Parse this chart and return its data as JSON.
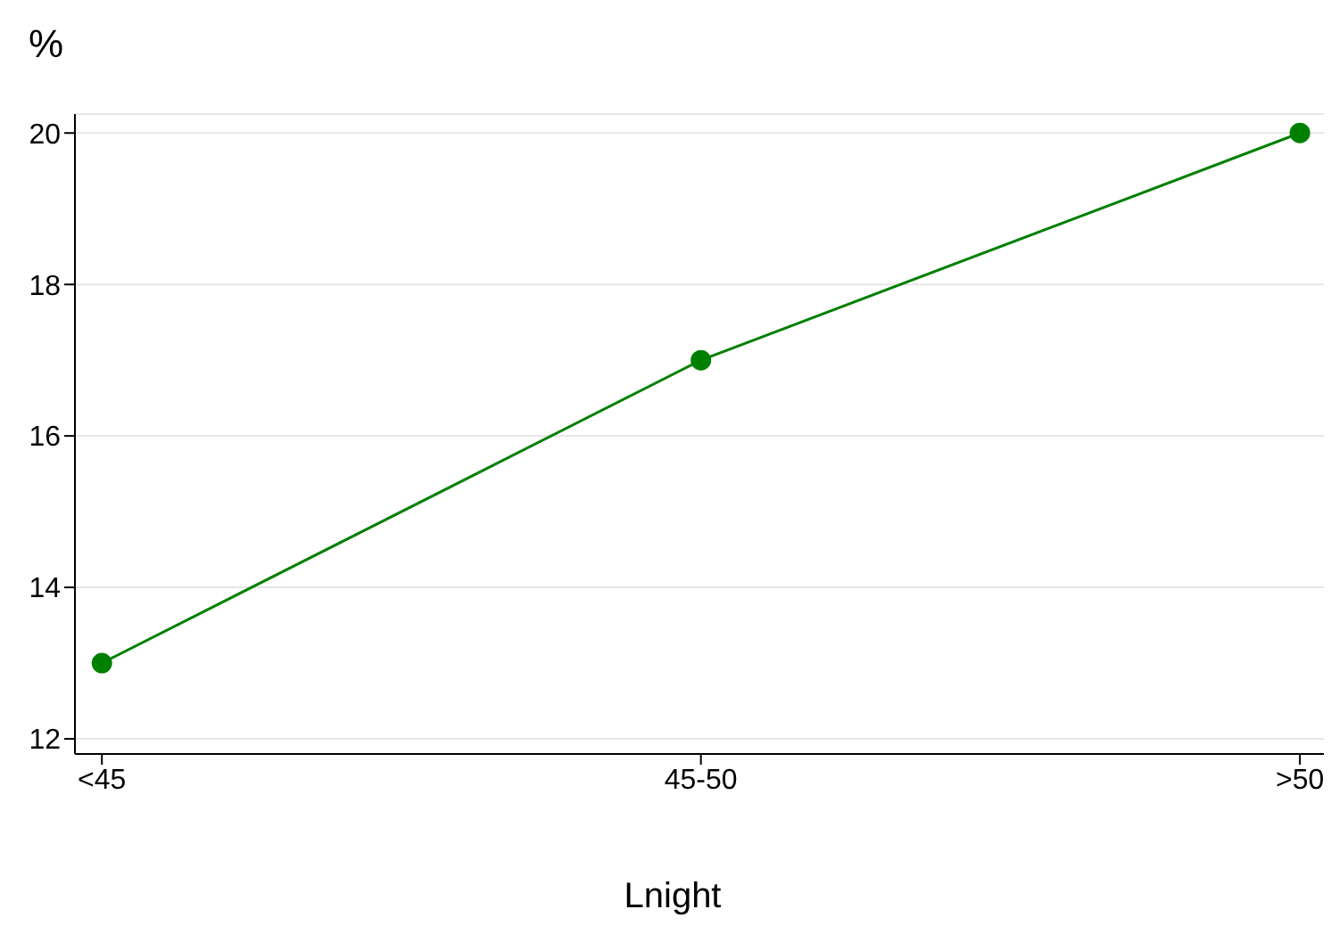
{
  "chart_data": {
    "type": "line",
    "ylabel": "%",
    "xlabel": "Lnight",
    "categories": [
      "<45",
      "45-50",
      ">50"
    ],
    "series": [
      {
        "color": "#008000",
        "values": [
          13,
          17,
          20
        ]
      }
    ],
    "ylim": [
      11.8,
      20.25
    ],
    "yticks": [
      12,
      14,
      16,
      18,
      20
    ],
    "grid": "y",
    "marker": "circle",
    "line_style": "solid"
  }
}
